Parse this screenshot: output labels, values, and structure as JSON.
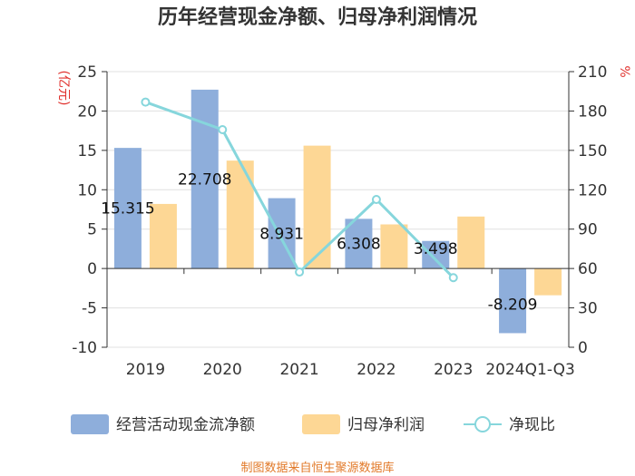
{
  "chart_data": {
    "type": "bar",
    "title": "历年经营现金净额、归母净利润情况",
    "categories": [
      "2019",
      "2020",
      "2021",
      "2022",
      "2023",
      "2024Q1-Q3"
    ],
    "series": [
      {
        "name": "经营活动现金流净额",
        "type": "bar",
        "axis": "left",
        "color": "#8eaedb",
        "values": [
          15.315,
          22.708,
          8.931,
          6.308,
          3.498,
          -8.209
        ],
        "labels": [
          "15.315",
          "22.708",
          "8.931",
          "6.308",
          "3.498",
          "-8.209"
        ]
      },
      {
        "name": "归母净利润",
        "type": "bar",
        "axis": "left",
        "color": "#fdd795",
        "values": [
          8.2,
          13.7,
          15.6,
          5.6,
          6.6,
          -3.4
        ]
      },
      {
        "name": "净现比",
        "type": "line",
        "axis": "right",
        "color": "#86d6dc",
        "values": [
          186.8,
          165.8,
          57.3,
          112.6,
          53.0,
          null
        ]
      }
    ],
    "left_axis": {
      "unit": "(亿元)",
      "min": -10,
      "max": 25,
      "step": 5,
      "ticks": [
        "-10",
        "-5",
        "0",
        "5",
        "10",
        "15",
        "20",
        "25"
      ]
    },
    "right_axis": {
      "unit": "%",
      "min": 0,
      "max": 210,
      "step": 30,
      "ticks": [
        "0",
        "30",
        "60",
        "90",
        "120",
        "150",
        "180",
        "210"
      ]
    },
    "grid": true,
    "legend_position": "bottom"
  },
  "source": "制图数据来自恒生聚源数据库"
}
